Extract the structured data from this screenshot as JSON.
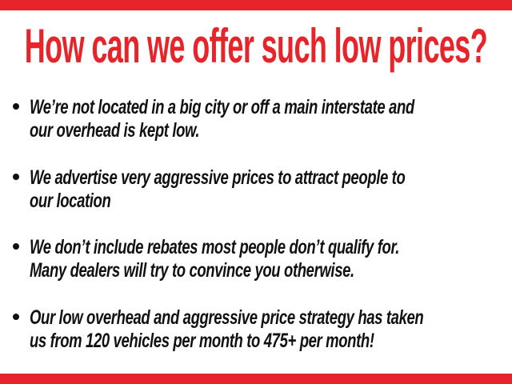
{
  "page": {
    "background": "#ffffff",
    "accent_red": "#e8242b",
    "text_black": "#111111"
  },
  "headline": {
    "text": "How can we offer such low prices?",
    "color": "#e8242b"
  },
  "bullet_glyph": "•",
  "bullets": [
    {
      "lines": [
        "We’re not located in a big city or off a main interstate and",
        "our overhead is kept low."
      ]
    },
    {
      "lines": [
        "We advertise very aggressive prices to attract people to",
        "our location"
      ]
    },
    {
      "lines": [
        "We don’t include rebates most people don’t qualify for.",
        "Many dealers will try to convince you otherwise."
      ]
    },
    {
      "lines": [
        "Our low overhead and aggressive price strategy has taken",
        "us from 120 vehicles per month to 475+ per month!"
      ]
    }
  ]
}
